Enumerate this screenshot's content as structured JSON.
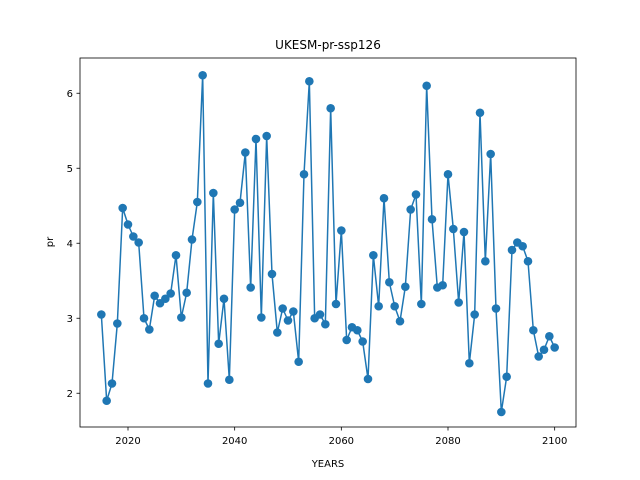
{
  "chart_data": {
    "type": "line",
    "title": "UKESM-pr-ssp126",
    "xlabel": "YEARS",
    "ylabel": "pr",
    "xlim": [
      2011,
      2104
    ],
    "ylim": [
      1.55,
      6.47
    ],
    "xticks": [
      2020,
      2040,
      2060,
      2080,
      2100
    ],
    "yticks": [
      2,
      3,
      4,
      5,
      6
    ],
    "grid": false,
    "markers": true,
    "color": "#1f77b4",
    "series": [
      {
        "x": [
          2015,
          2016,
          2017,
          2018,
          2019,
          2020,
          2021,
          2022,
          2023,
          2024,
          2025,
          2026,
          2027,
          2028,
          2029,
          2030,
          2031,
          2032,
          2033,
          2034,
          2035,
          2036,
          2037,
          2038,
          2039,
          2040,
          2041,
          2042,
          2043,
          2044,
          2045,
          2046,
          2047,
          2048,
          2049,
          2050,
          2051,
          2052,
          2053,
          2054,
          2055,
          2056,
          2057,
          2058,
          2059,
          2060,
          2061,
          2062,
          2063,
          2064,
          2065,
          2066,
          2067,
          2068,
          2069,
          2070,
          2071,
          2072,
          2073,
          2074,
          2075,
          2076,
          2077,
          2078,
          2079,
          2080,
          2081,
          2082,
          2083,
          2084,
          2085,
          2086,
          2087,
          2088,
          2089,
          2090,
          2091,
          2092,
          2093,
          2094,
          2095,
          2096,
          2097,
          2098,
          2099,
          2100
        ],
        "values": [
          3.05,
          1.9,
          2.13,
          2.93,
          4.47,
          4.25,
          4.09,
          4.01,
          3.0,
          2.85,
          3.3,
          3.2,
          3.26,
          3.33,
          3.84,
          3.01,
          3.34,
          4.05,
          4.55,
          6.24,
          2.13,
          4.67,
          2.66,
          3.26,
          2.18,
          4.45,
          4.54,
          5.21,
          3.41,
          5.39,
          3.01,
          5.43,
          3.59,
          2.81,
          3.13,
          2.97,
          3.09,
          2.42,
          4.92,
          6.16,
          3.0,
          3.05,
          2.92,
          5.8,
          3.19,
          4.17,
          2.71,
          2.88,
          2.84,
          2.69,
          2.19,
          3.84,
          3.16,
          4.6,
          3.48,
          3.16,
          2.96,
          3.42,
          4.45,
          4.65,
          3.19,
          6.1,
          4.32,
          3.41,
          3.44,
          4.92,
          4.19,
          3.21,
          4.15,
          2.4,
          3.05,
          5.74,
          3.76,
          5.19,
          3.13,
          1.75,
          2.22,
          3.91,
          4.01,
          3.96,
          3.76,
          2.84,
          2.49,
          2.58,
          2.76,
          2.61
        ]
      }
    ]
  }
}
